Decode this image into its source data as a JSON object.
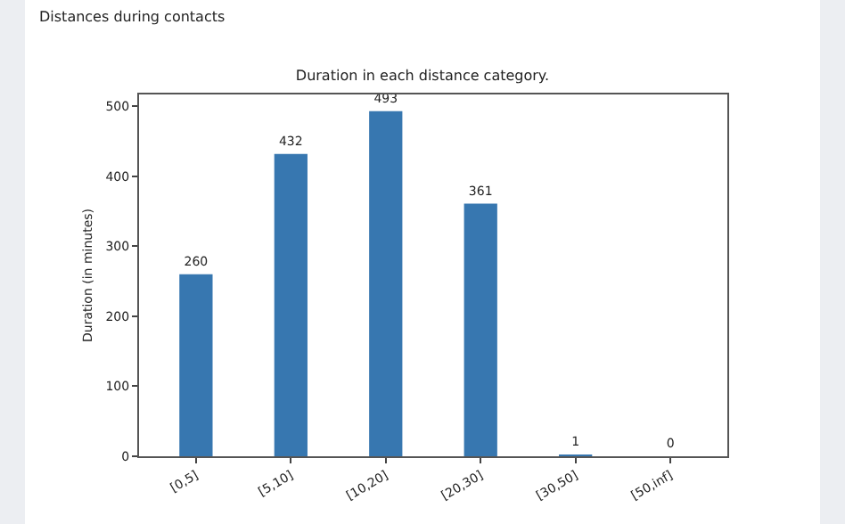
{
  "chart_data": {
    "type": "bar",
    "title": "Distances during contacts",
    "subtitle": "Duration in each distance category.",
    "ylabel": "Duration (in minutes)",
    "categories": [
      "[0,5]",
      "[5,10]",
      "[10,20]",
      "[20,30]",
      "[30,50]",
      "[50,inf]"
    ],
    "values": [
      260,
      432,
      493,
      361,
      1,
      0
    ],
    "color": "#3777b0",
    "ylim": [
      0,
      517
    ],
    "yticks": [
      0,
      100,
      200,
      300,
      400,
      500
    ],
    "grid": false,
    "data_labels": true
  }
}
